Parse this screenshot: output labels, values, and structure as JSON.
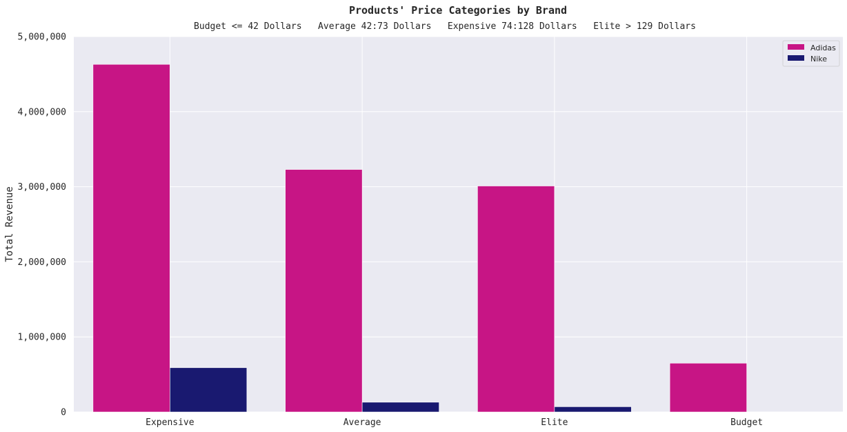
{
  "chart_data": {
    "type": "bar",
    "title": "Products' Price Categories by Brand",
    "subtitle": "Budget <= 42 Dollars   Average 42:73 Dollars   Expensive 74:128 Dollars   Elite > 129 Dollars",
    "xlabel": "",
    "ylabel": "Total Revenue",
    "categories": [
      "Expensive",
      "Average",
      "Elite",
      "Budget"
    ],
    "series": [
      {
        "name": "Adidas",
        "color": "#c71585",
        "values": [
          4630000,
          3230000,
          3010000,
          650000
        ]
      },
      {
        "name": "Nike",
        "color": "#191970",
        "values": [
          590000,
          130000,
          70000,
          0
        ]
      }
    ],
    "ylim": [
      0,
      5000000
    ],
    "yticks": [
      0,
      1000000,
      2000000,
      3000000,
      4000000,
      5000000
    ],
    "ytick_labels": [
      "0",
      "1,000,000",
      "2,000,000",
      "3,000,000",
      "4,000,000",
      "5,000,000"
    ],
    "grid": true,
    "legend_position": "top-right",
    "background_color": "#eaeaf2"
  }
}
